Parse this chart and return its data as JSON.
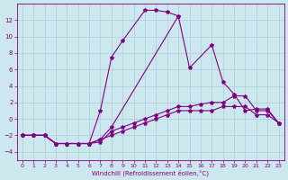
{
  "xlabel": "Windchill (Refroidissement éolien,°C)",
  "xlim": [
    -0.5,
    23.5
  ],
  "ylim": [
    -5,
    14
  ],
  "yticks": [
    -4,
    -2,
    0,
    2,
    4,
    6,
    8,
    10,
    12
  ],
  "xticks": [
    0,
    1,
    2,
    3,
    4,
    5,
    6,
    7,
    8,
    9,
    10,
    11,
    12,
    13,
    14,
    15,
    16,
    17,
    18,
    19,
    20,
    21,
    22,
    23
  ],
  "bg_color": "#cce8ee",
  "line_color": "#800080",
  "grid_color": "#aacdd6",
  "line1_x": [
    0,
    1,
    2,
    3,
    4,
    5,
    6,
    7,
    8,
    9,
    11,
    12,
    13,
    14
  ],
  "line1_y": [
    -2,
    -2,
    -2,
    -3,
    -3,
    -3,
    -3,
    1,
    7.5,
    9.5,
    13.2,
    13.2,
    13.0,
    12.5
  ],
  "line2_x": [
    0,
    1,
    2,
    3,
    4,
    5,
    6,
    7,
    8,
    14,
    15,
    17,
    18,
    19,
    20,
    21,
    22,
    23
  ],
  "line2_y": [
    -2,
    -2,
    -2,
    -3,
    -3,
    -3,
    -3,
    -2.5,
    -1,
    12.5,
    6.2,
    9,
    4.5,
    3,
    1,
    1.2,
    1.2,
    -0.5
  ],
  "line3_x": [
    0,
    1,
    2,
    3,
    4,
    5,
    6,
    7,
    8,
    9,
    10,
    11,
    12,
    13,
    14,
    15,
    16,
    17,
    18,
    19,
    20,
    21,
    22,
    23
  ],
  "line3_y": [
    -2,
    -2,
    -2,
    -3,
    -3,
    -3,
    -3,
    -2.8,
    -1.5,
    -1,
    -0.5,
    0,
    0.5,
    1,
    1.5,
    1.5,
    1.8,
    2,
    2,
    2.8,
    2.8,
    1,
    1,
    -0.5
  ],
  "line4_x": [
    0,
    1,
    2,
    3,
    4,
    5,
    6,
    7,
    8,
    9,
    10,
    11,
    12,
    13,
    14,
    15,
    16,
    17,
    18,
    19,
    20,
    21,
    22,
    23
  ],
  "line4_y": [
    -2,
    -2,
    -2,
    -3,
    -3,
    -3,
    -3,
    -2.5,
    -2,
    -1.5,
    -1,
    -0.5,
    0,
    0.5,
    1,
    1,
    1,
    1,
    1.5,
    1.5,
    1.5,
    0.5,
    0.5,
    -0.5
  ]
}
